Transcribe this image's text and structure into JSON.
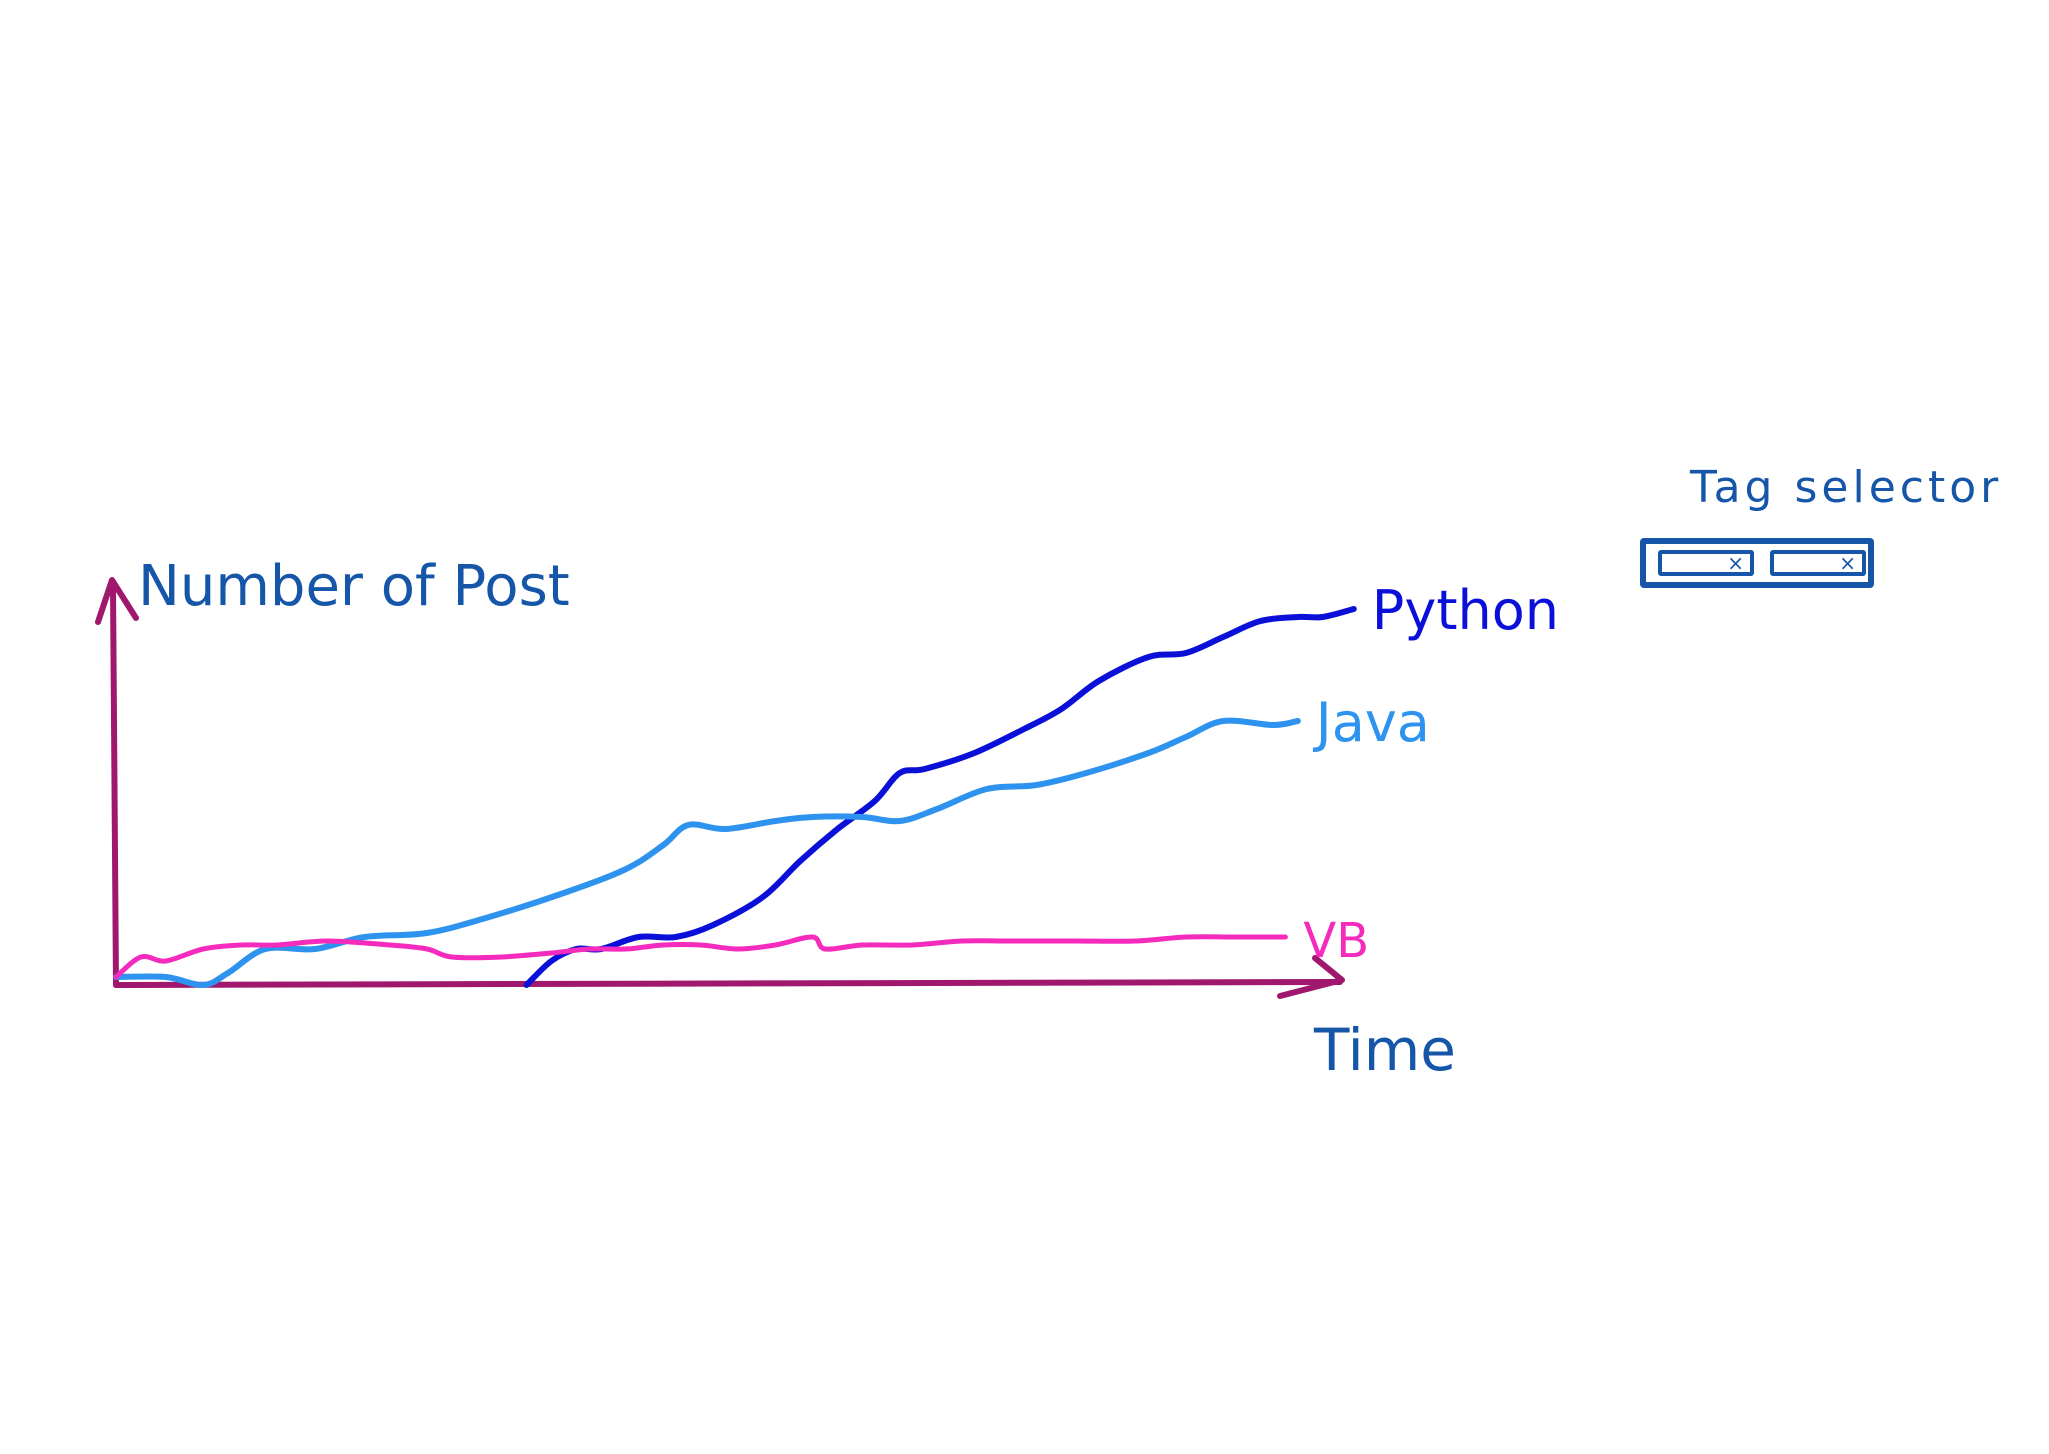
{
  "colors": {
    "axis": "#a0176e",
    "text": "#1556a8",
    "python": "#0a10d8",
    "java": "#2e93ee",
    "vb": "#f42bbd"
  },
  "tag_selector": {
    "label": "Tag selector",
    "chips": [
      {
        "icon": "close-icon"
      },
      {
        "icon": "close-icon"
      }
    ]
  },
  "chart_data": {
    "type": "line",
    "ylabel": "Number of Post",
    "xlabel": "Time",
    "xlim": [
      0,
      100
    ],
    "ylim": [
      0,
      100
    ],
    "grid": false,
    "legend": "inline-labels-at-line-ends",
    "series": [
      {
        "name": "Python",
        "color": "#0a10d8",
        "x": [
          33,
          35,
          37,
          39,
          42,
          45,
          48,
          52,
          55,
          58,
          61,
          63,
          65,
          69,
          73,
          76,
          79,
          83,
          86,
          89,
          92,
          95,
          97,
          99.5
        ],
        "y": [
          0,
          6,
          9,
          9,
          12,
          12,
          15,
          22,
          31,
          39,
          46,
          53,
          54,
          58,
          64,
          69,
          76,
          82,
          83,
          87,
          91,
          92,
          92,
          94
        ]
      },
      {
        "name": "Java",
        "color": "#2e93ee",
        "x": [
          0,
          4,
          7,
          9,
          12,
          16,
          20,
          25,
          30,
          36,
          41,
          44,
          46,
          49,
          53,
          56,
          60,
          63,
          66,
          70,
          74,
          78,
          83,
          86,
          89,
          93,
          95
        ],
        "y": [
          2,
          2,
          0,
          3,
          9,
          9,
          12,
          13,
          17,
          23,
          29,
          35,
          40,
          39,
          41,
          42,
          42,
          41,
          44,
          49,
          50,
          53,
          58,
          62,
          66,
          65,
          66
        ]
      },
      {
        "name": "VB",
        "color": "#f42bbd",
        "x": [
          0,
          2,
          4,
          7,
          10,
          13,
          17,
          22,
          25,
          27,
          31,
          35,
          38,
          41,
          44,
          47,
          50,
          53,
          56,
          57,
          60,
          64,
          68,
          72,
          77,
          82,
          86,
          90,
          94
        ],
        "y": [
          2,
          7,
          6,
          9,
          10,
          10,
          11,
          10,
          9,
          7,
          7,
          8,
          9,
          9,
          10,
          10,
          9,
          10,
          12,
          9,
          10,
          10,
          11,
          11,
          11,
          11,
          12,
          12,
          12
        ]
      }
    ]
  }
}
